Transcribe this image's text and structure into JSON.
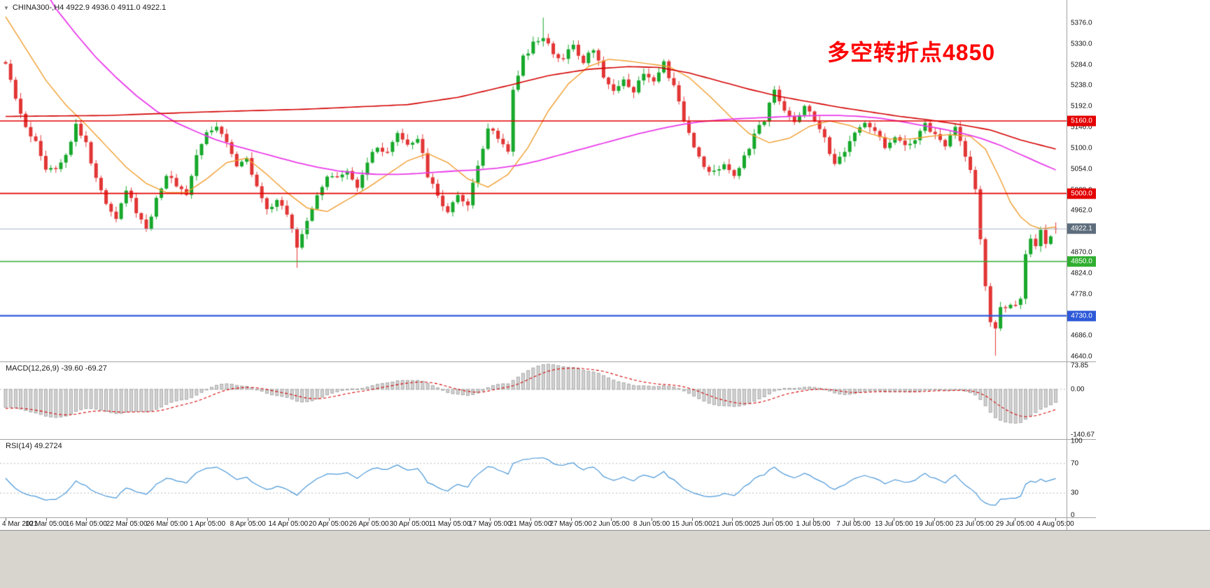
{
  "window": {
    "background": "#ffffff",
    "bottom_strip_color": "#d8d5cf",
    "divider_color": "#a3a3a3"
  },
  "header": {
    "collapse_icon": "▼",
    "symbol_info": "CHINA300-,H4  4922.9 4936.0 4911.0 4922.1"
  },
  "annotation": {
    "text": "多空转折点4850",
    "color": "#ff0000"
  },
  "price_axis": {
    "min": 4640,
    "max": 5376,
    "step": 46,
    "labels": [
      "5376.0",
      "5330.0",
      "5284.0",
      "5238.0",
      "5192.0",
      "5146.0",
      "5100.0",
      "5054.0",
      "5008.0",
      "4962.0",
      "4916.0",
      "4870.0",
      "4824.0",
      "4778.0",
      "4732.0",
      "4686.0",
      "4640.0"
    ]
  },
  "price_levels": [
    {
      "label": "5160.0",
      "value": 5160.0,
      "color": "#e40000",
      "width": 1.5,
      "type": "resistance"
    },
    {
      "label": "5000.0",
      "value": 5000.0,
      "color": "#e40000",
      "width": 1.8,
      "type": "support"
    },
    {
      "label": "4850.0",
      "value": 4850.0,
      "color": "#2fae2f",
      "width": 1.5,
      "type": "support"
    },
    {
      "label": "4730.0",
      "value": 4730.0,
      "color": "#2d59d8",
      "width": 2.2,
      "type": "support"
    }
  ],
  "current_price": {
    "label": "4922.1",
    "value": 4922.1,
    "badge_color": "#5d6d7c",
    "line_color": "#a9b8c6"
  },
  "macd_panel": {
    "label": "MACD(12,26,9) -39.60 -69.27",
    "histogram_color": "#d2d2d2",
    "histogram_border": "#9c9c9c",
    "signal_color": "#d40000",
    "scale_labels": [
      {
        "text": "73.85",
        "value": 73.85
      },
      {
        "text": "0.00",
        "value": 0.0
      },
      {
        "text": "-140.67",
        "value": -140.67
      }
    ]
  },
  "rsi_panel": {
    "label": "RSI(14) 49.2724",
    "line_color": "#4a97d8",
    "scale_labels": [
      {
        "text": "100",
        "value": 100
      },
      {
        "text": "70",
        "value": 70
      },
      {
        "text": "30",
        "value": 30
      },
      {
        "text": "0",
        "value": 0
      }
    ]
  },
  "chart_data": {
    "type": "candlestick",
    "symbol": "CHINA300-",
    "timeframe": "H4",
    "title": "CHINA300- H4 with MACD(12,26,9) and RSI(14)",
    "ylim": [
      4640,
      5376
    ],
    "num_candles": 210,
    "up_color": "#17a82b",
    "down_color": "#e23535",
    "current_ohlc": {
      "open": 4922.9,
      "high": 4936.0,
      "low": 4911.0,
      "close": 4922.1
    },
    "key_levels": [
      5160.0,
      5000.0,
      4850.0,
      4730.0
    ],
    "annotation": "多空转折点4850",
    "x_tick_labels": [
      "4 Mar 2021",
      "10 Mar 05:00",
      "16 Mar 05:00",
      "22 Mar 05:00",
      "26 Mar 05:00",
      "1 Apr 05:00",
      "8 Apr 05:00",
      "14 Apr 05:00",
      "20 Apr 05:00",
      "26 Apr 05:00",
      "30 Apr 05:00",
      "11 May 05:00",
      "17 May 05:00",
      "21 May 05:00",
      "27 May 05:00",
      "2 Jun 05:00",
      "8 Jun 05:00",
      "15 Jun 05:00",
      "21 Jun 05:00",
      "25 Jun 05:00",
      "1 Jul 05:00",
      "7 Jul 05:00",
      "13 Jul 05:00",
      "19 Jul 05:00",
      "23 Jul 05:00",
      "29 Jul 05:00",
      "4 Aug 05:00"
    ],
    "price_keypoints": [
      [
        0,
        5280
      ],
      [
        2,
        5210
      ],
      [
        4,
        5140
      ],
      [
        6,
        5120
      ],
      [
        8,
        5055
      ],
      [
        10,
        5060
      ],
      [
        12,
        5090
      ],
      [
        14,
        5150
      ],
      [
        16,
        5110
      ],
      [
        18,
        5030
      ],
      [
        20,
        4980
      ],
      [
        22,
        4950
      ],
      [
        24,
        5010
      ],
      [
        26,
        4960
      ],
      [
        28,
        4920
      ],
      [
        30,
        4990
      ],
      [
        32,
        5040
      ],
      [
        34,
        5020
      ],
      [
        36,
        5000
      ],
      [
        38,
        5080
      ],
      [
        40,
        5135
      ],
      [
        42,
        5150
      ],
      [
        44,
        5120
      ],
      [
        46,
        5060
      ],
      [
        48,
        5080
      ],
      [
        50,
        5010
      ],
      [
        52,
        4960
      ],
      [
        54,
        4985
      ],
      [
        56,
        4955
      ],
      [
        58,
        4880
      ],
      [
        60,
        4940
      ],
      [
        62,
        5000
      ],
      [
        64,
        5040
      ],
      [
        66,
        5030
      ],
      [
        68,
        5045
      ],
      [
        70,
        5010
      ],
      [
        72,
        5070
      ],
      [
        74,
        5100
      ],
      [
        76,
        5085
      ],
      [
        78,
        5130
      ],
      [
        80,
        5105
      ],
      [
        82,
        5125
      ],
      [
        84,
        5040
      ],
      [
        86,
        4990
      ],
      [
        88,
        4962
      ],
      [
        90,
        5000
      ],
      [
        92,
        4975
      ],
      [
        94,
        5060
      ],
      [
        96,
        5150
      ],
      [
        98,
        5120
      ],
      [
        100,
        5095
      ],
      [
        101,
        5230
      ],
      [
        103,
        5300
      ],
      [
        105,
        5330
      ],
      [
        107,
        5340
      ],
      [
        109,
        5310
      ],
      [
        111,
        5300
      ],
      [
        113,
        5325
      ],
      [
        115,
        5290
      ],
      [
        117,
        5320
      ],
      [
        119,
        5260
      ],
      [
        121,
        5225
      ],
      [
        123,
        5255
      ],
      [
        125,
        5225
      ],
      [
        127,
        5270
      ],
      [
        129,
        5245
      ],
      [
        131,
        5285
      ],
      [
        133,
        5235
      ],
      [
        135,
        5160
      ],
      [
        137,
        5105
      ],
      [
        139,
        5060
      ],
      [
        141,
        5045
      ],
      [
        143,
        5060
      ],
      [
        145,
        5040
      ],
      [
        147,
        5085
      ],
      [
        149,
        5125
      ],
      [
        151,
        5165
      ],
      [
        153,
        5230
      ],
      [
        155,
        5185
      ],
      [
        157,
        5160
      ],
      [
        159,
        5190
      ],
      [
        161,
        5165
      ],
      [
        163,
        5120
      ],
      [
        165,
        5060
      ],
      [
        167,
        5090
      ],
      [
        169,
        5130
      ],
      [
        171,
        5160
      ],
      [
        173,
        5140
      ],
      [
        175,
        5100
      ],
      [
        177,
        5130
      ],
      [
        179,
        5100
      ],
      [
        181,
        5120
      ],
      [
        183,
        5150
      ],
      [
        185,
        5130
      ],
      [
        187,
        5110
      ],
      [
        189,
        5140
      ],
      [
        191,
        5085
      ],
      [
        193,
        5010
      ],
      [
        194,
        4900
      ],
      [
        195,
        4800
      ],
      [
        196,
        4720
      ],
      [
        197,
        4700
      ],
      [
        198,
        4755
      ],
      [
        199,
        4745
      ],
      [
        200,
        4760
      ],
      [
        201,
        4750
      ],
      [
        202,
        4770
      ],
      [
        203,
        4860
      ],
      [
        204,
        4905
      ],
      [
        205,
        4890
      ],
      [
        206,
        4915
      ],
      [
        207,
        4895
      ],
      [
        208,
        4910
      ],
      [
        209,
        4922
      ]
    ],
    "forced_extremes": {
      "highs": [
        [
          107,
          5388
        ]
      ],
      "lows": [
        [
          58,
          4836
        ],
        [
          197,
          4642
        ]
      ]
    },
    "moving_averages": [
      {
        "name": "MA-fast",
        "color": "#f09d2e",
        "width": 1.4,
        "points": [
          [
            0,
            5390
          ],
          [
            4,
            5320
          ],
          [
            8,
            5250
          ],
          [
            12,
            5195
          ],
          [
            16,
            5152
          ],
          [
            20,
            5105
          ],
          [
            24,
            5058
          ],
          [
            28,
            5022
          ],
          [
            32,
            5002
          ],
          [
            36,
            5002
          ],
          [
            40,
            5032
          ],
          [
            44,
            5068
          ],
          [
            48,
            5078
          ],
          [
            52,
            5042
          ],
          [
            56,
            5002
          ],
          [
            60,
            4968
          ],
          [
            64,
            4960
          ],
          [
            68,
            4986
          ],
          [
            72,
            5012
          ],
          [
            76,
            5042
          ],
          [
            80,
            5072
          ],
          [
            84,
            5088
          ],
          [
            88,
            5068
          ],
          [
            92,
            5032
          ],
          [
            96,
            5014
          ],
          [
            100,
            5042
          ],
          [
            104,
            5102
          ],
          [
            108,
            5182
          ],
          [
            112,
            5242
          ],
          [
            116,
            5280
          ],
          [
            120,
            5296
          ],
          [
            124,
            5292
          ],
          [
            128,
            5286
          ],
          [
            132,
            5280
          ],
          [
            136,
            5256
          ],
          [
            140,
            5216
          ],
          [
            144,
            5172
          ],
          [
            148,
            5132
          ],
          [
            152,
            5112
          ],
          [
            156,
            5122
          ],
          [
            160,
            5148
          ],
          [
            164,
            5160
          ],
          [
            168,
            5150
          ],
          [
            172,
            5132
          ],
          [
            176,
            5120
          ],
          [
            180,
            5120
          ],
          [
            184,
            5126
          ],
          [
            188,
            5130
          ],
          [
            192,
            5126
          ],
          [
            195,
            5098
          ],
          [
            198,
            5030
          ],
          [
            200,
            4980
          ],
          [
            202,
            4948
          ],
          [
            204,
            4930
          ],
          [
            206,
            4922
          ],
          [
            209,
            4926
          ]
        ]
      },
      {
        "name": "MA-mid",
        "color": "#e93ce9",
        "width": 1.8,
        "points": [
          [
            0,
            5560
          ],
          [
            6,
            5480
          ],
          [
            10,
            5408
          ],
          [
            14,
            5352
          ],
          [
            18,
            5300
          ],
          [
            22,
            5256
          ],
          [
            26,
            5216
          ],
          [
            30,
            5182
          ],
          [
            34,
            5156
          ],
          [
            38,
            5136
          ],
          [
            42,
            5118
          ],
          [
            46,
            5104
          ],
          [
            50,
            5092
          ],
          [
            54,
            5080
          ],
          [
            58,
            5068
          ],
          [
            62,
            5058
          ],
          [
            66,
            5050
          ],
          [
            70,
            5045
          ],
          [
            74,
            5042
          ],
          [
            78,
            5042
          ],
          [
            82,
            5044
          ],
          [
            86,
            5047
          ],
          [
            90,
            5050
          ],
          [
            94,
            5052
          ],
          [
            98,
            5056
          ],
          [
            102,
            5062
          ],
          [
            106,
            5072
          ],
          [
            110,
            5084
          ],
          [
            114,
            5096
          ],
          [
            118,
            5108
          ],
          [
            122,
            5120
          ],
          [
            126,
            5132
          ],
          [
            130,
            5142
          ],
          [
            134,
            5151
          ],
          [
            138,
            5158
          ],
          [
            142,
            5162
          ],
          [
            146,
            5165
          ],
          [
            150,
            5167
          ],
          [
            154,
            5169
          ],
          [
            158,
            5171
          ],
          [
            162,
            5172
          ],
          [
            166,
            5172
          ],
          [
            170,
            5170
          ],
          [
            174,
            5166
          ],
          [
            178,
            5159
          ],
          [
            182,
            5151
          ],
          [
            186,
            5143
          ],
          [
            190,
            5134
          ],
          [
            194,
            5122
          ],
          [
            198,
            5106
          ],
          [
            202,
            5086
          ],
          [
            206,
            5066
          ],
          [
            209,
            5052
          ]
        ]
      },
      {
        "name": "MA-slow",
        "color": "#d40000",
        "width": 1.6,
        "points": [
          [
            0,
            5170
          ],
          [
            20,
            5172
          ],
          [
            40,
            5180
          ],
          [
            60,
            5186
          ],
          [
            80,
            5196
          ],
          [
            90,
            5212
          ],
          [
            100,
            5238
          ],
          [
            108,
            5260
          ],
          [
            116,
            5274
          ],
          [
            124,
            5280
          ],
          [
            130,
            5278
          ],
          [
            136,
            5266
          ],
          [
            142,
            5248
          ],
          [
            148,
            5230
          ],
          [
            154,
            5214
          ],
          [
            160,
            5202
          ],
          [
            166,
            5190
          ],
          [
            172,
            5180
          ],
          [
            178,
            5170
          ],
          [
            184,
            5162
          ],
          [
            190,
            5152
          ],
          [
            196,
            5140
          ],
          [
            202,
            5118
          ],
          [
            209,
            5098
          ]
        ]
      }
    ],
    "indicators": [
      {
        "name": "MACD",
        "params": [
          12,
          26,
          9
        ],
        "last_macd": -39.6,
        "last_signal": -69.27,
        "scale": [
          -140.67,
          0.0,
          73.85
        ]
      },
      {
        "name": "RSI",
        "params": [
          14
        ],
        "last_value": 49.2724,
        "levels": [
          30,
          70
        ],
        "scale": [
          0,
          30,
          70,
          100
        ]
      }
    ]
  }
}
